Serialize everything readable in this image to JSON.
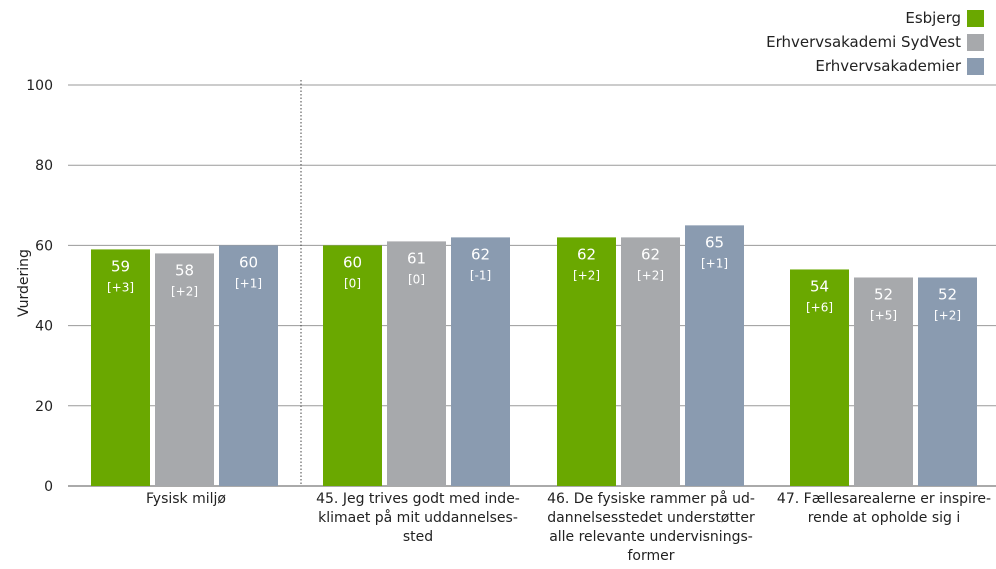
{
  "colors": {
    "esbjerg": "#6aa800",
    "sydvest": "#a7a9ac",
    "akademier": "#8a9bb0"
  },
  "chart_data": {
    "type": "bar",
    "ylabel": "Vurdering",
    "ylim": [
      0,
      100
    ],
    "yticks": [
      0,
      20,
      40,
      60,
      80,
      100
    ],
    "grid": true,
    "legend_position": "top-right",
    "categories": [
      "Fysisk miljø",
      "45. Jeg trives godt med inde-\nklimaet på mit uddannelses-\nsted",
      "46. De fysiske rammer på ud-\ndannelsesstedet understøtter\nalle relevante undervisnings-\nformer",
      "47. Fællesarealerne er inspire-\nrende at opholde sig i"
    ],
    "series": [
      {
        "name": "Esbjerg",
        "values": [
          59,
          60,
          62,
          54
        ],
        "changes": [
          "[+3]",
          "[0]",
          "[+2]",
          "[+6]"
        ]
      },
      {
        "name": "Erhvervsakademi SydVest",
        "values": [
          58,
          61,
          62,
          52
        ],
        "changes": [
          "[+2]",
          "[0]",
          "[+2]",
          "[+5]"
        ]
      },
      {
        "name": "Erhvervsakademier",
        "values": [
          60,
          62,
          65,
          52
        ],
        "changes": [
          "[+1]",
          "[-1]",
          "[+1]",
          "[+2]"
        ]
      }
    ]
  }
}
